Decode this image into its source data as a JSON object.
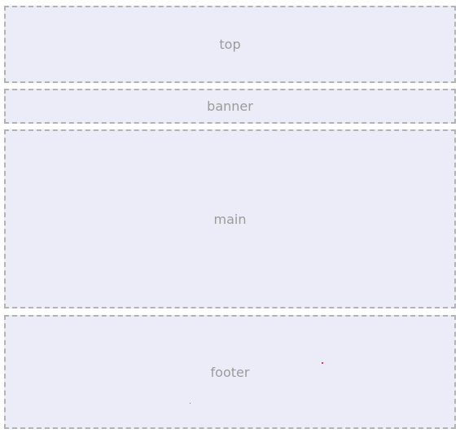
{
  "blocks": {
    "top": "top",
    "banner": "banner",
    "main": "main",
    "footer": "footer"
  },
  "colors": {
    "block_fill": "#ecebf8",
    "border": "#b3b3b3",
    "label": "#9b9b9b",
    "accent_dot": "#d01010"
  }
}
